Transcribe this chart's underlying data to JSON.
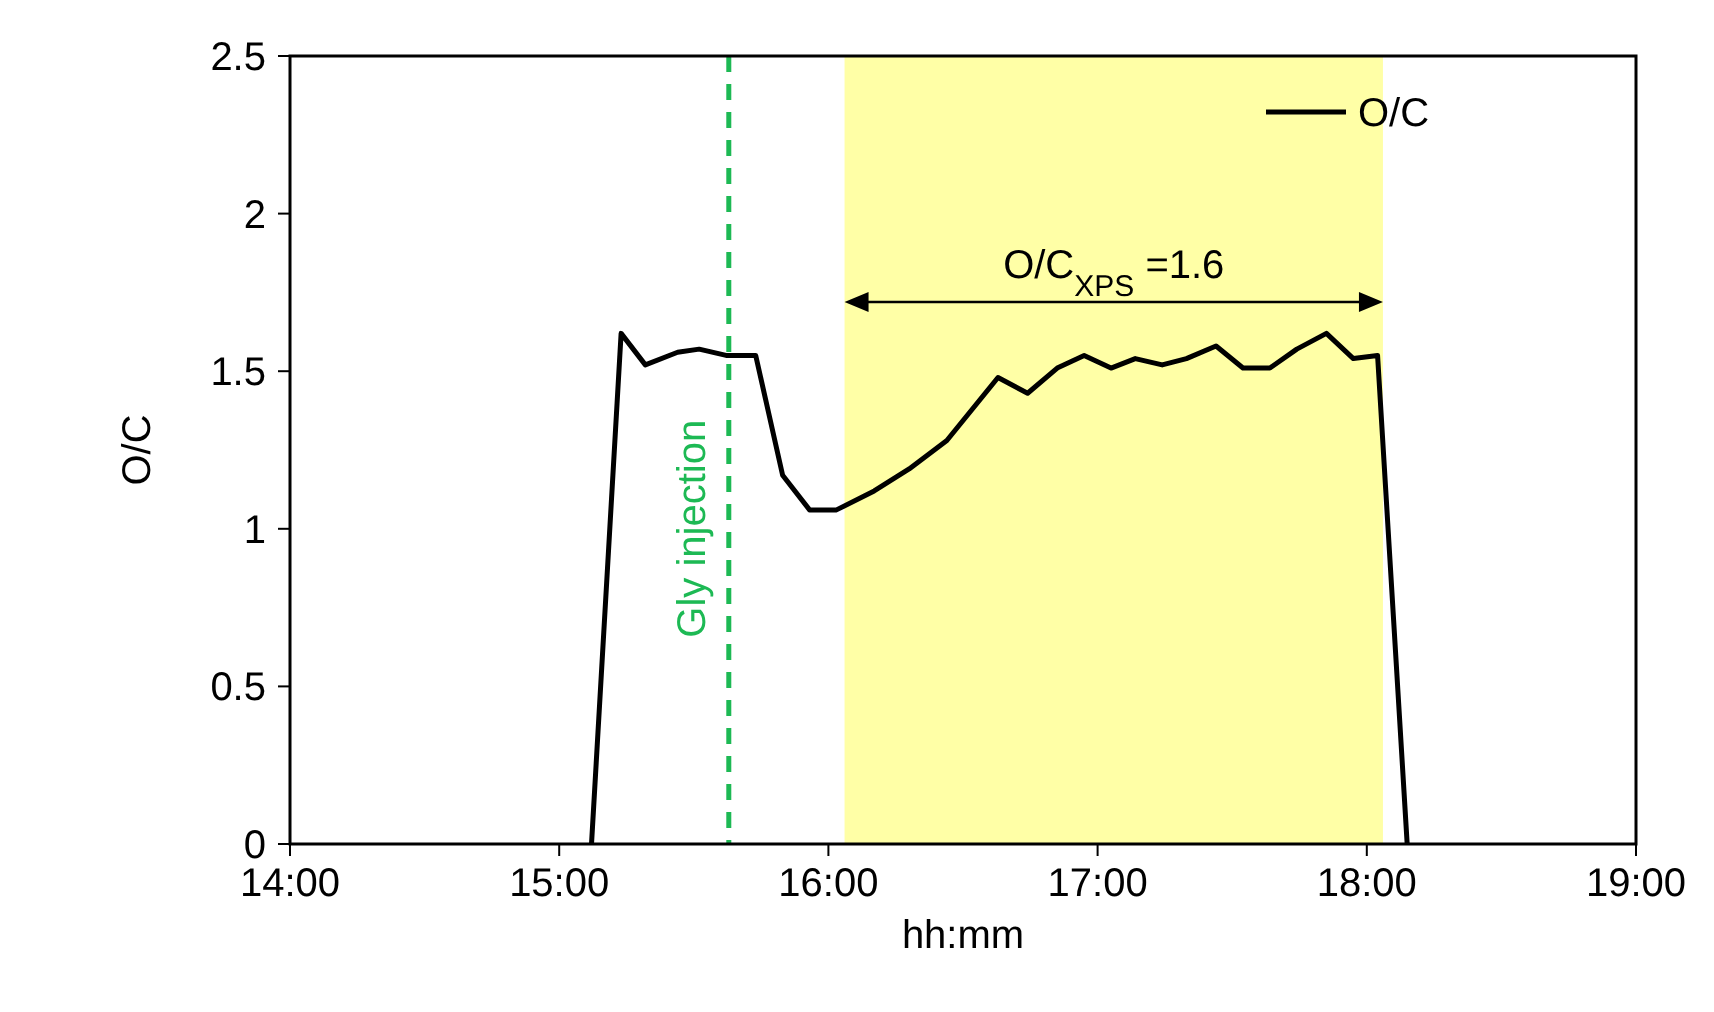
{
  "chart_data": {
    "type": "line",
    "xlabel": "hh:mm",
    "ylabel": "O/C",
    "xlim": [
      14,
      19
    ],
    "xticks": [
      {
        "value": 14,
        "label": "14:00"
      },
      {
        "value": 15,
        "label": "15:00"
      },
      {
        "value": 16,
        "label": "16:00"
      },
      {
        "value": 17,
        "label": "17:00"
      },
      {
        "value": 18,
        "label": "18:00"
      },
      {
        "value": 19,
        "label": "19:00"
      }
    ],
    "ylim": [
      0,
      2.5
    ],
    "yticks": [
      0,
      {
        "value": 0.5,
        "label": "0.5"
      },
      1,
      {
        "value": 1.5,
        "label": "1.5"
      },
      2,
      {
        "value": 2.5,
        "label": "2.5"
      }
    ],
    "series": [
      {
        "name": "O/C",
        "color": "#000000",
        "x": [
          15.12,
          15.23,
          15.32,
          15.44,
          15.52,
          15.62,
          15.73,
          15.83,
          15.93,
          16.03,
          16.17,
          16.3,
          16.44,
          16.63,
          16.74,
          16.85,
          16.95,
          17.05,
          17.14,
          17.24,
          17.33,
          17.44,
          17.54,
          17.64,
          17.74,
          17.85,
          17.95,
          18.04,
          18.15
        ],
        "values": [
          0,
          1.62,
          1.52,
          1.56,
          1.57,
          1.55,
          1.55,
          1.17,
          1.06,
          1.06,
          1.12,
          1.19,
          1.28,
          1.48,
          1.43,
          1.51,
          1.55,
          1.51,
          1.54,
          1.52,
          1.54,
          1.58,
          1.51,
          1.51,
          1.57,
          1.62,
          1.54,
          1.55,
          0
        ]
      }
    ],
    "ref_lines": [
      {
        "axis": "x",
        "value": 15.63,
        "label": "Gly injection",
        "color": "#1db954",
        "line_style": "dashed"
      }
    ],
    "bands": [
      {
        "axis": "x",
        "from": 16.06,
        "to": 18.06,
        "color": "#ffffa6"
      }
    ],
    "annotations": [
      "O/C$_{XPS}$ =1.6"
    ],
    "legend": "top right",
    "grid": false,
    "marker": "none",
    "line_style": "solid"
  }
}
